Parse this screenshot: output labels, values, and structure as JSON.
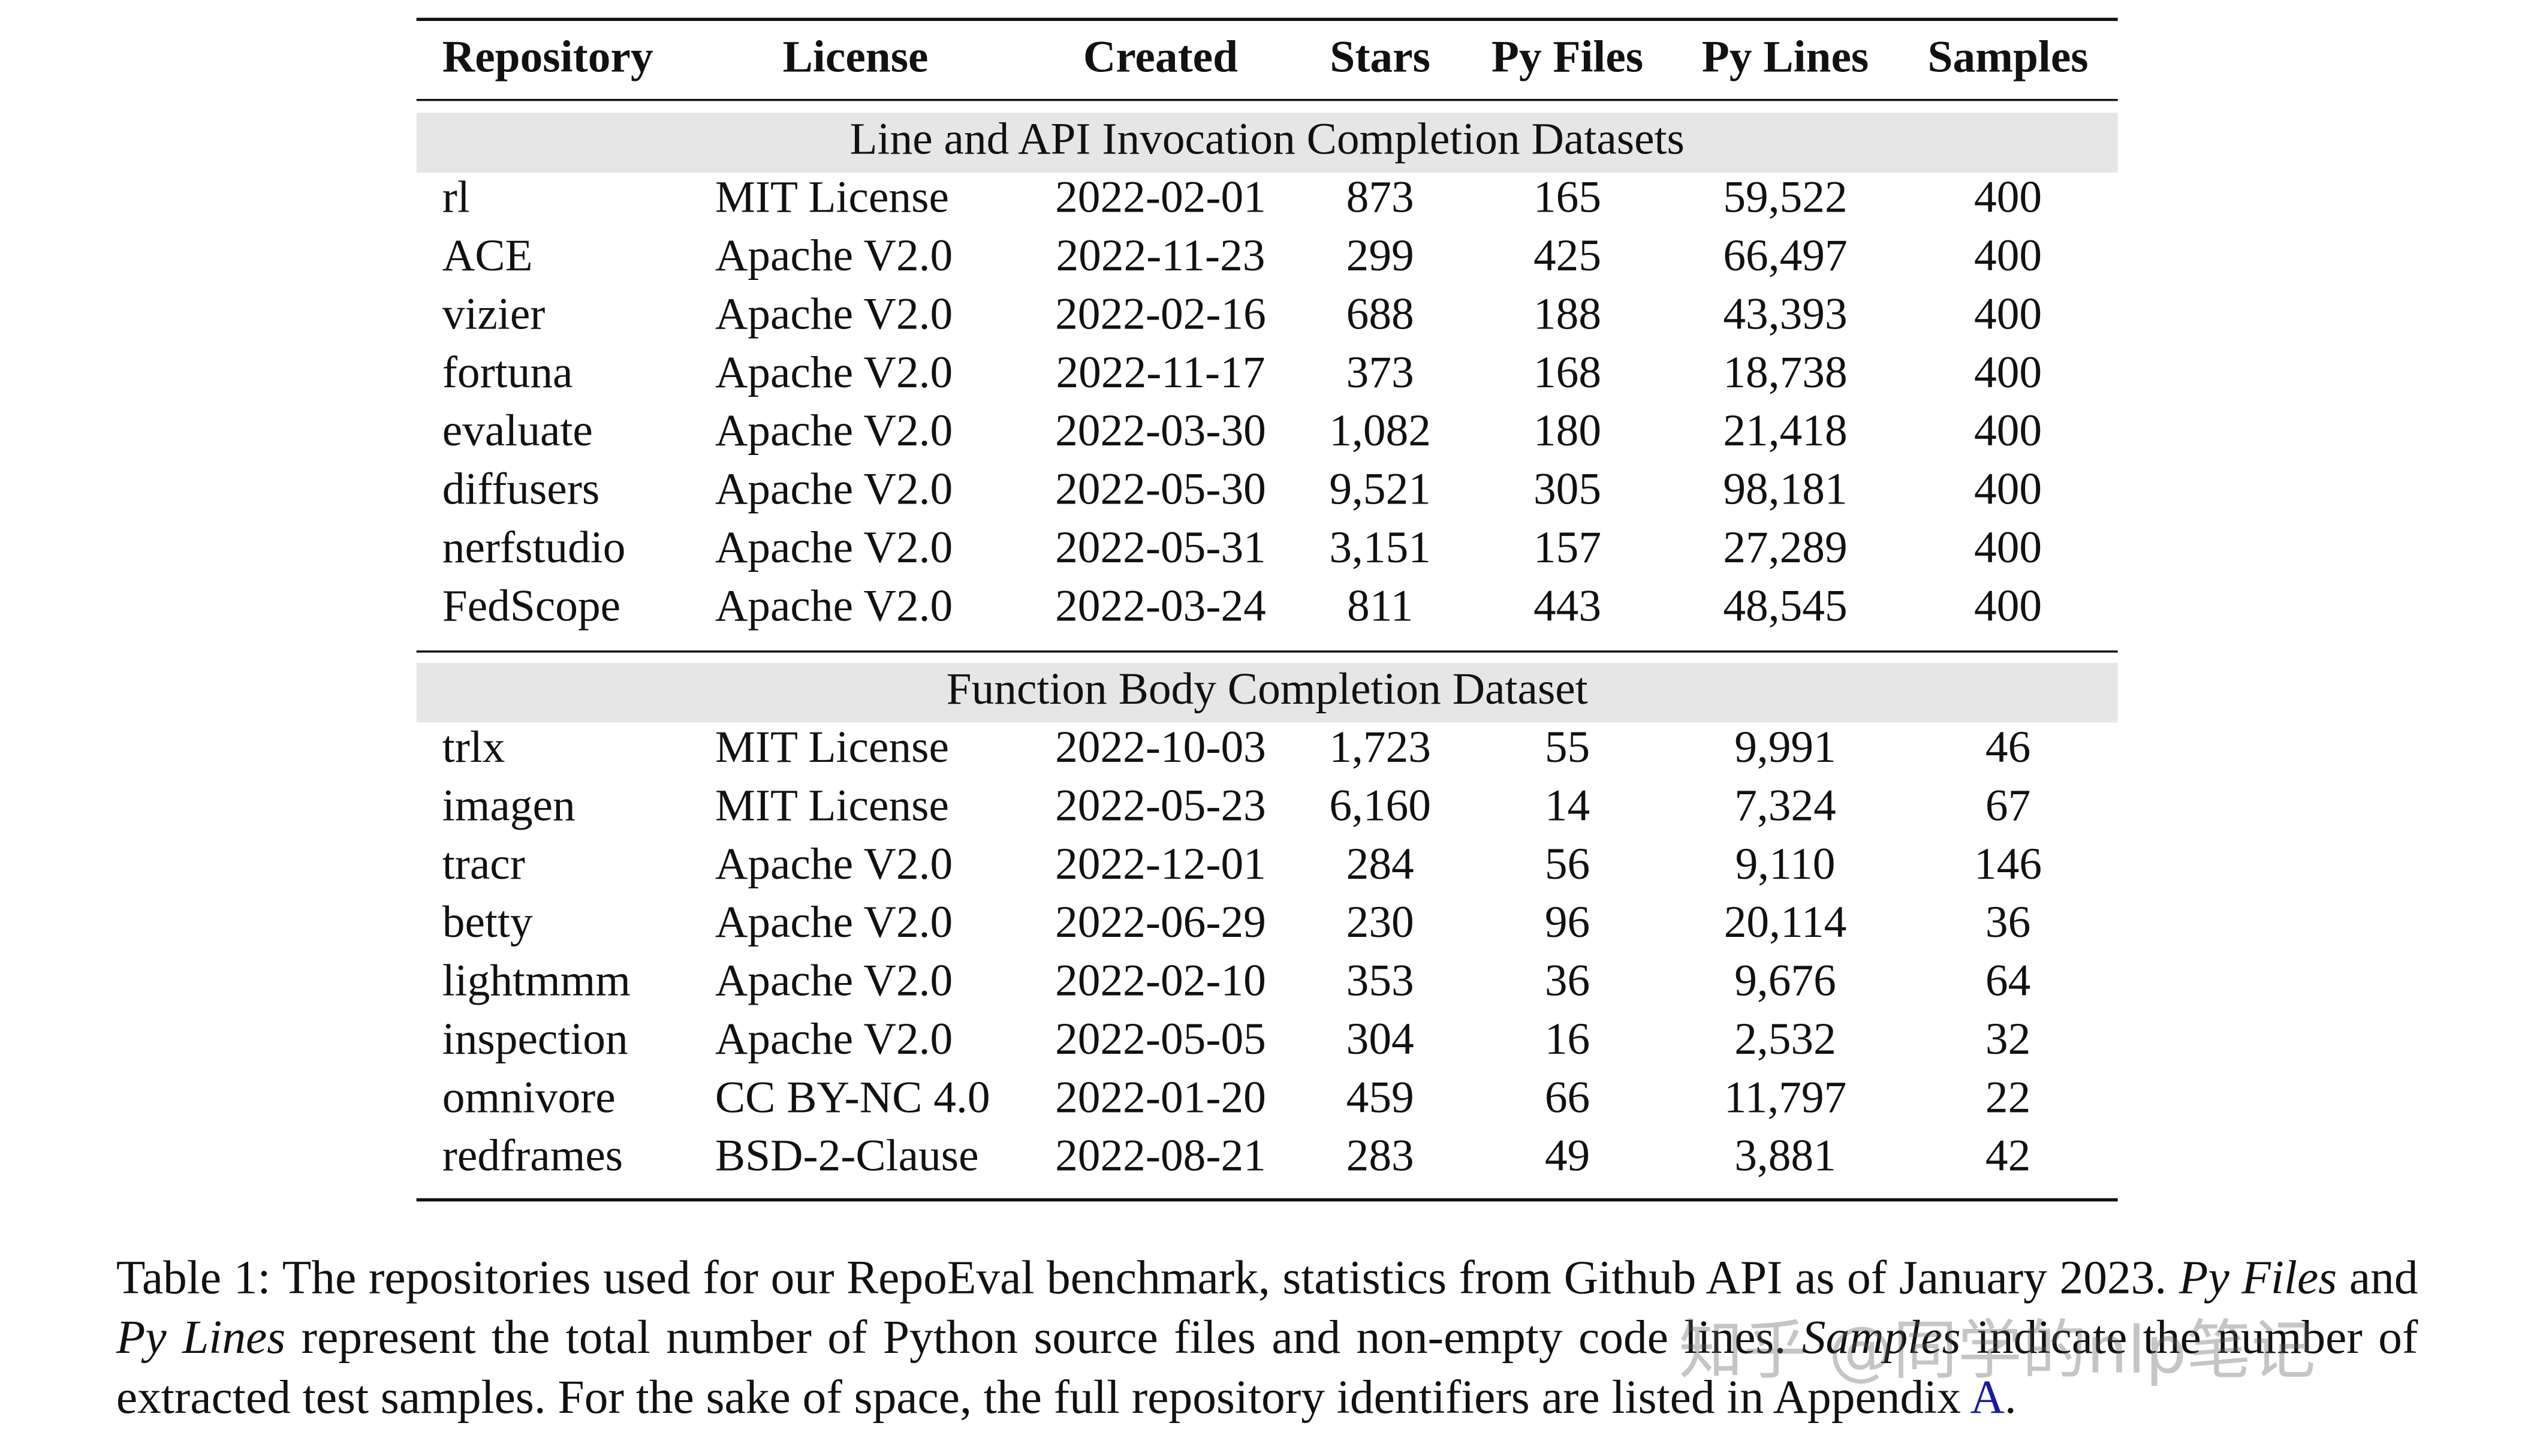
{
  "table": {
    "header": [
      "Repository",
      "License",
      "Created",
      "Stars",
      "Py Files",
      "Py Lines",
      "Samples"
    ],
    "sections": [
      {
        "title": "Line and API Invocation Completion Datasets",
        "rows": [
          [
            "rl",
            "MIT License",
            "2022-02-01",
            "873",
            "165",
            "59,522",
            "400"
          ],
          [
            "ACE",
            "Apache V2.0",
            "2022-11-23",
            "299",
            "425",
            "66,497",
            "400"
          ],
          [
            "vizier",
            "Apache V2.0",
            "2022-02-16",
            "688",
            "188",
            "43,393",
            "400"
          ],
          [
            "fortuna",
            "Apache V2.0",
            "2022-11-17",
            "373",
            "168",
            "18,738",
            "400"
          ],
          [
            "evaluate",
            "Apache V2.0",
            "2022-03-30",
            "1,082",
            "180",
            "21,418",
            "400"
          ],
          [
            "diffusers",
            "Apache V2.0",
            "2022-05-30",
            "9,521",
            "305",
            "98,181",
            "400"
          ],
          [
            "nerfstudio",
            "Apache V2.0",
            "2022-05-31",
            "3,151",
            "157",
            "27,289",
            "400"
          ],
          [
            "FedScope",
            "Apache V2.0",
            "2022-03-24",
            "811",
            "443",
            "48,545",
            "400"
          ]
        ]
      },
      {
        "title": "Function Body Completion Dataset",
        "rows": [
          [
            "trlx",
            "MIT License",
            "2022-10-03",
            "1,723",
            "55",
            "9,991",
            "46"
          ],
          [
            "imagen",
            "MIT License",
            "2022-05-23",
            "6,160",
            "14",
            "7,324",
            "67"
          ],
          [
            "tracr",
            "Apache V2.0",
            "2022-12-01",
            "284",
            "56",
            "9,110",
            "146"
          ],
          [
            "betty",
            "Apache V2.0",
            "2022-06-29",
            "230",
            "96",
            "20,114",
            "36"
          ],
          [
            "lightmmm",
            "Apache V2.0",
            "2022-02-10",
            "353",
            "36",
            "9,676",
            "64"
          ],
          [
            "inspection",
            "Apache V2.0",
            "2022-05-05",
            "304",
            "16",
            "2,532",
            "32"
          ],
          [
            "omnivore",
            "CC BY-NC 4.0",
            "2022-01-20",
            "459",
            "66",
            "11,797",
            "22"
          ],
          [
            "redframes",
            "BSD-2-Clause",
            "2022-08-21",
            "283",
            "49",
            "3,881",
            "42"
          ]
        ]
      }
    ]
  },
  "caption": [
    {
      "text": "Table 1: The repositories used for our RepoEval benchmark, statistics from Github API as of January 2023. "
    },
    {
      "text": "Py Files",
      "italic": true
    },
    {
      "text": " and "
    },
    {
      "text": "Py Lines",
      "italic": true
    },
    {
      "text": " represent the total number of Python source files and non-empty code lines. "
    },
    {
      "text": "Samples",
      "italic": true
    },
    {
      "text": " indicate the number of extracted test samples. For the sake of space, the full repository identifiers are listed in Appendix "
    },
    {
      "text": "A",
      "link": true
    },
    {
      "text": "."
    }
  ],
  "watermark": "知乎 @同学的nlp笔记"
}
